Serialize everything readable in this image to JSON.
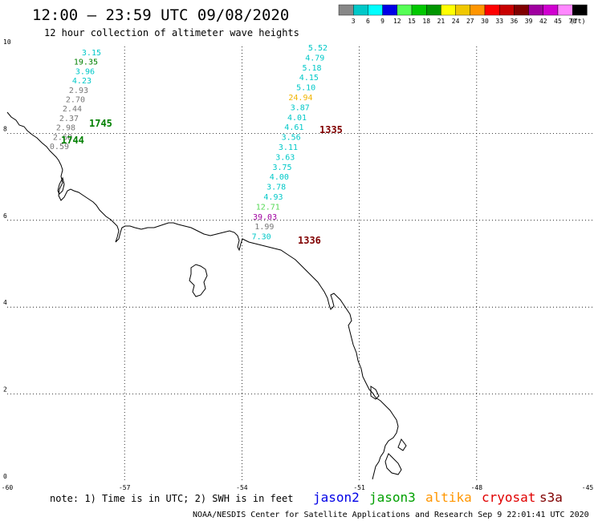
{
  "header": {
    "title": "12:00 – 23:59 UTC 09/08/2020",
    "subtitle": "12 hour collection of altimeter wave heights"
  },
  "colorbar": {
    "unit": "(ft)",
    "swatches": [
      {
        "color": "#888888",
        "label": "3"
      },
      {
        "color": "#00c8c8",
        "label": "6"
      },
      {
        "color": "#00ffff",
        "label": "9"
      },
      {
        "color": "#0000e6",
        "label": "12"
      },
      {
        "color": "#55ff55",
        "label": "15"
      },
      {
        "color": "#00c800",
        "label": "18"
      },
      {
        "color": "#009600",
        "label": "21"
      },
      {
        "color": "#ffff00",
        "label": "24"
      },
      {
        "color": "#f0c800",
        "label": "27"
      },
      {
        "color": "#ff9600",
        "label": "30"
      },
      {
        "color": "#ff0000",
        "label": "33"
      },
      {
        "color": "#c80000",
        "label": "36"
      },
      {
        "color": "#800000",
        "label": "39"
      },
      {
        "color": "#a000a0",
        "label": "42"
      },
      {
        "color": "#d000d0",
        "label": "45"
      },
      {
        "color": "#ff88ff",
        "label": "70"
      },
      {
        "color": "#000000",
        "label": ""
      }
    ]
  },
  "map": {
    "lon_range": [
      -60,
      -45
    ],
    "lat_range": [
      0,
      10
    ],
    "lon_ticks": [
      "-60",
      "-57",
      "-54",
      "-51",
      "-48",
      "-45"
    ],
    "lat_ticks": [
      "10",
      "8",
      "6",
      "4",
      "2",
      "0"
    ]
  },
  "tracks": [
    {
      "satellite": "jason3",
      "times": [
        {
          "text": "1745",
          "color": "#008000"
        },
        {
          "text": "1744",
          "color": "#008000"
        }
      ],
      "values": [
        {
          "text": "3.15",
          "color": "#00c8c8"
        },
        {
          "text": "19.35",
          "color": "#008000"
        },
        {
          "text": "3.96",
          "color": "#00c8c8"
        },
        {
          "text": "4.23",
          "color": "#00c8c8"
        },
        {
          "text": "2.93",
          "color": "#777777"
        },
        {
          "text": "2.70",
          "color": "#777777"
        },
        {
          "text": "2.44",
          "color": "#777777"
        },
        {
          "text": "2.37",
          "color": "#777777"
        },
        {
          "text": "2.98",
          "color": "#777777"
        },
        {
          "text": "2.68",
          "color": "#777777"
        },
        {
          "text": "0.59",
          "color": "#777777"
        }
      ]
    },
    {
      "satellite": "cryosat",
      "times": [
        {
          "text": "1335",
          "color": "#800000"
        },
        {
          "text": "1336",
          "color": "#800000"
        }
      ],
      "values": [
        {
          "text": "5.52",
          "color": "#00c8c8"
        },
        {
          "text": "4.79",
          "color": "#00c8c8"
        },
        {
          "text": "5.18",
          "color": "#00c8c8"
        },
        {
          "text": "4.15",
          "color": "#00c8c8"
        },
        {
          "text": "5.10",
          "color": "#00c8c8"
        },
        {
          "text": "24.94",
          "color": "#f0b400"
        },
        {
          "text": "3.87",
          "color": "#00c8c8"
        },
        {
          "text": "4.01",
          "color": "#00c8c8"
        },
        {
          "text": "4.61",
          "color": "#00c8c8"
        },
        {
          "text": "3.56",
          "color": "#00c8c8"
        },
        {
          "text": "3.11",
          "color": "#00c8c8"
        },
        {
          "text": "3.63",
          "color": "#00c8c8"
        },
        {
          "text": "3.75",
          "color": "#00c8c8"
        },
        {
          "text": "4.00",
          "color": "#00c8c8"
        },
        {
          "text": "3.78",
          "color": "#00c8c8"
        },
        {
          "text": "4.93",
          "color": "#00c8c8"
        },
        {
          "text": "12.71",
          "color": "#55d855"
        },
        {
          "text": "39.03",
          "color": "#a000a0"
        },
        {
          "text": "1.99",
          "color": "#777777"
        },
        {
          "text": "7.30",
          "color": "#00c8c8"
        }
      ]
    }
  ],
  "footer": {
    "note": "note: 1) Time is in UTC; 2) SWH is in feet",
    "satellites": [
      {
        "name": "jason2",
        "color": "#0000e6"
      },
      {
        "name": "jason3",
        "color": "#00a000"
      },
      {
        "name": "altika",
        "color": "#ff9600"
      },
      {
        "name": "cryosat",
        "color": "#e00000"
      },
      {
        "name": "s3a",
        "color": "#800000"
      }
    ],
    "credit": "NOAA/NESDIS Center for Satellite Applications and Research   Sep  9 22:01:41 UTC 2020"
  }
}
